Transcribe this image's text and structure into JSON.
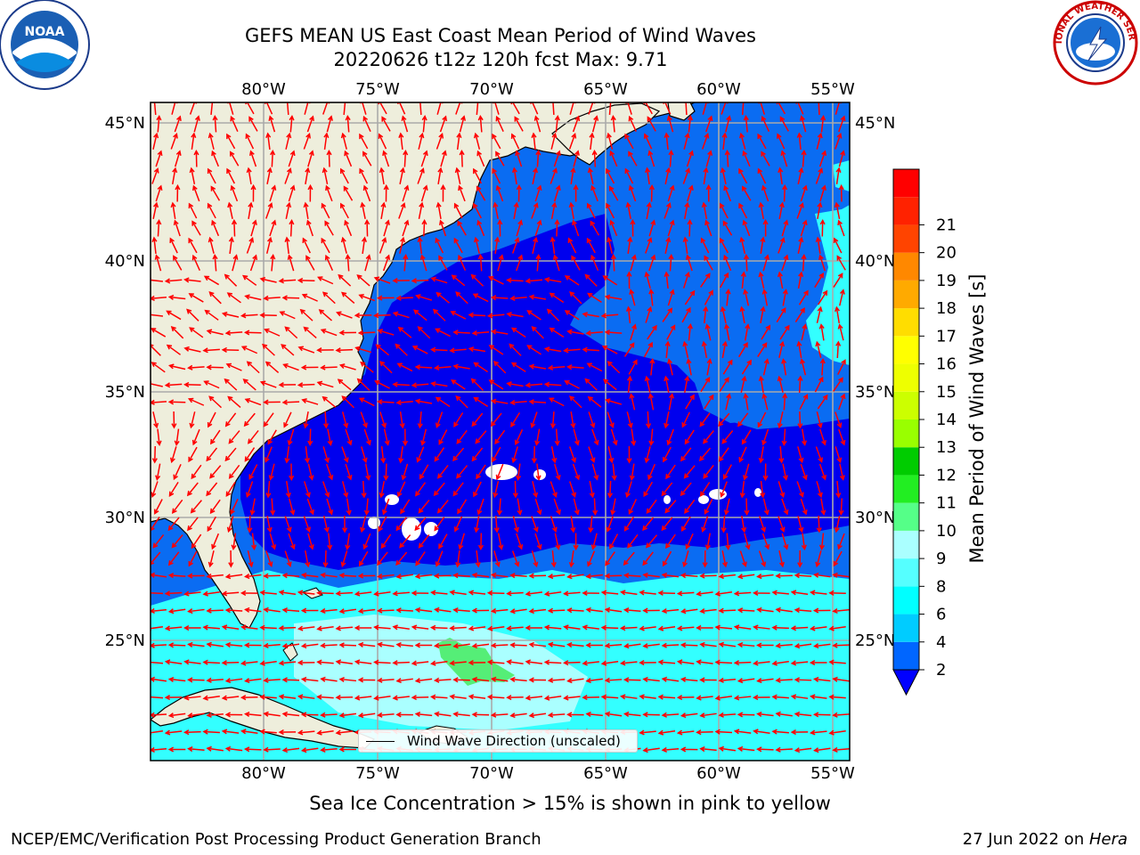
{
  "title_line1": "GEFS MEAN US East Coast Mean Period of Wind Waves",
  "title_line2": "20220626 t12z 120h fcst   Max: 9.71",
  "lon_labels": [
    "80°W",
    "75°W",
    "70°W",
    "65°W",
    "60°W",
    "55°W"
  ],
  "lat_labels": [
    "45°N",
    "40°N",
    "35°N",
    "30°N",
    "25°N"
  ],
  "colorbar": {
    "label": "Mean Period of Wind Waves [s]",
    "ticks": [
      "2",
      "4",
      "6",
      "8",
      "9",
      "10",
      "11",
      "12",
      "13",
      "14",
      "15",
      "16",
      "17",
      "18",
      "19",
      "20",
      "21"
    ],
    "colors": [
      "#0066ff",
      "#00ccff",
      "#00ffff",
      "#55ffff",
      "#aaffff",
      "#55ff88",
      "#22ee22",
      "#00cc00",
      "#99ff00",
      "#ccff00",
      "#eeff00",
      "#ffff00",
      "#ffdd00",
      "#ffaa00",
      "#ff8800",
      "#ff4400",
      "#ff2200",
      "#ff0000"
    ],
    "extend_color": "#0000ff"
  },
  "legend_text": "Wind Wave Direction (unscaled)",
  "sea_ice_note": "Sea Ice Concentration > 15% is shown in pink to yellow",
  "footer_left": "NCEP/EMC/Verification Post Processing Product Generation Branch",
  "footer_right_date": "27 Jun 2022 on ",
  "footer_right_machine": "Hera",
  "logos": {
    "left": "NOAA",
    "right": "NATIONAL WEATHER SERVICE"
  },
  "colors": {
    "land": "#eeeedc",
    "deep_blue": "#0000ee",
    "mid_blue": "#0a6cf2",
    "cyan": "#33ffff",
    "light_cyan": "#aaffff",
    "arrow": "#ff0000"
  }
}
